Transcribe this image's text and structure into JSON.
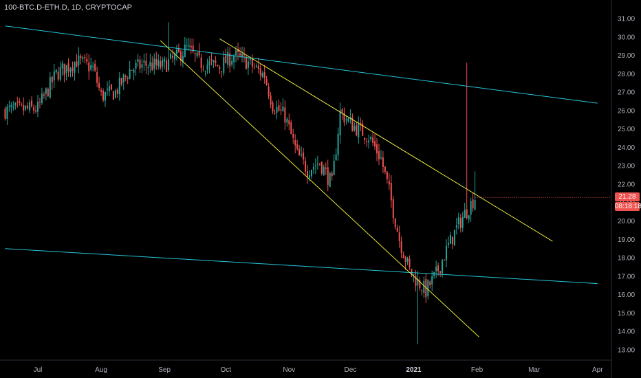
{
  "symbol": {
    "title": "100-BTC.D-ETH.D, 1D, CRYPTOCAP"
  },
  "price_tag": {
    "value": "21.28",
    "countdown": "08:18:18"
  },
  "colors": {
    "background": "#000000",
    "up": "#26a69a",
    "down": "#ef5350",
    "channel": "#26c6da",
    "wedge": "#e8e83a",
    "axis_text": "#b2b5be"
  },
  "chart_data": {
    "type": "candlestick",
    "title": "100-BTC.D-ETH.D, 1D, CRYPTOCAP",
    "ylim": [
      12.6,
      31.4
    ],
    "y_ticks": [
      "13.00",
      "14.00",
      "15.00",
      "16.00",
      "17.00",
      "18.00",
      "19.00",
      "20.00",
      "21.00",
      "22.00",
      "23.00",
      "24.00",
      "25.00",
      "26.00",
      "27.00",
      "28.00",
      "29.00",
      "30.00",
      "31.00"
    ],
    "x_ticks": [
      {
        "label": "Jul",
        "date": "2020-07-01"
      },
      {
        "label": "Aug",
        "date": "2020-08-01"
      },
      {
        "label": "Sep",
        "date": "2020-09-01"
      },
      {
        "label": "Oct",
        "date": "2020-10-01"
      },
      {
        "label": "Nov",
        "date": "2020-11-01"
      },
      {
        "label": "Dec",
        "date": "2020-12-01"
      },
      {
        "label": "2021",
        "date": "2021-01-01"
      },
      {
        "label": "Feb",
        "date": "2021-02-01"
      },
      {
        "label": "Mar",
        "date": "2021-03-01"
      },
      {
        "label": "Apr",
        "date": "2021-04-01"
      }
    ],
    "price_path": [
      {
        "date": "2020-06-15",
        "close": 26.0
      },
      {
        "date": "2020-07-01",
        "close": 26.1
      },
      {
        "date": "2020-07-10",
        "close": 28.0
      },
      {
        "date": "2020-07-20",
        "close": 28.7
      },
      {
        "date": "2020-07-28",
        "close": 28.3
      },
      {
        "date": "2020-08-01",
        "close": 26.8
      },
      {
        "date": "2020-08-08",
        "close": 27.0
      },
      {
        "date": "2020-08-15",
        "close": 28.2
      },
      {
        "date": "2020-08-22",
        "close": 28.5
      },
      {
        "date": "2020-08-31",
        "close": 28.4
      },
      {
        "date": "2020-09-07",
        "close": 28.9
      },
      {
        "date": "2020-09-12",
        "close": 29.4
      },
      {
        "date": "2020-09-18",
        "close": 28.6
      },
      {
        "date": "2020-09-28",
        "close": 28.4
      },
      {
        "date": "2020-10-05",
        "close": 29.0
      },
      {
        "date": "2020-10-12",
        "close": 28.6
      },
      {
        "date": "2020-10-20",
        "close": 27.9
      },
      {
        "date": "2020-10-24",
        "close": 26.3
      },
      {
        "date": "2020-10-30",
        "close": 25.7
      },
      {
        "date": "2020-11-05",
        "close": 23.6
      },
      {
        "date": "2020-11-10",
        "close": 22.8
      },
      {
        "date": "2020-11-16",
        "close": 23.2
      },
      {
        "date": "2020-11-22",
        "close": 22.0
      },
      {
        "date": "2020-11-26",
        "close": 25.9
      },
      {
        "date": "2020-12-02",
        "close": 25.2
      },
      {
        "date": "2020-12-10",
        "close": 24.6
      },
      {
        "date": "2020-12-16",
        "close": 23.4
      },
      {
        "date": "2020-12-20",
        "close": 21.6
      },
      {
        "date": "2020-12-25",
        "close": 19.0
      },
      {
        "date": "2020-12-30",
        "close": 17.3
      },
      {
        "date": "2021-01-03",
        "close": 16.7
      },
      {
        "date": "2021-01-07",
        "close": 16.2
      },
      {
        "date": "2021-01-12",
        "close": 17.1
      },
      {
        "date": "2021-01-17",
        "close": 18.4
      },
      {
        "date": "2021-01-22",
        "close": 19.6
      },
      {
        "date": "2021-01-26",
        "close": 20.4
      },
      {
        "date": "2021-01-31",
        "close": 21.28
      }
    ],
    "spikes": [
      {
        "date": "2020-09-03",
        "high": 30.8
      },
      {
        "date": "2021-01-03",
        "low": 13.3
      },
      {
        "date": "2021-01-27",
        "high": 28.6
      },
      {
        "date": "2021-01-31",
        "high": 22.7
      }
    ],
    "trendlines": [
      {
        "name": "channel-upper",
        "color": "#26c6da",
        "from": {
          "date": "2020-06-15",
          "value": 30.6
        },
        "to": {
          "date": "2021-04-01",
          "value": 26.4
        }
      },
      {
        "name": "channel-lower",
        "color": "#26c6da",
        "from": {
          "date": "2020-06-15",
          "value": 18.5
        },
        "to": {
          "date": "2021-04-01",
          "value": 16.6
        }
      },
      {
        "name": "wedge-upper",
        "color": "#e8e83a",
        "from": {
          "date": "2020-09-28",
          "value": 29.9
        },
        "to": {
          "date": "2021-03-10",
          "value": 18.9
        }
      },
      {
        "name": "wedge-lower",
        "color": "#e8e83a",
        "from": {
          "date": "2020-08-30",
          "value": 29.8
        },
        "to": {
          "date": "2021-02-02",
          "value": 13.7
        }
      }
    ]
  }
}
